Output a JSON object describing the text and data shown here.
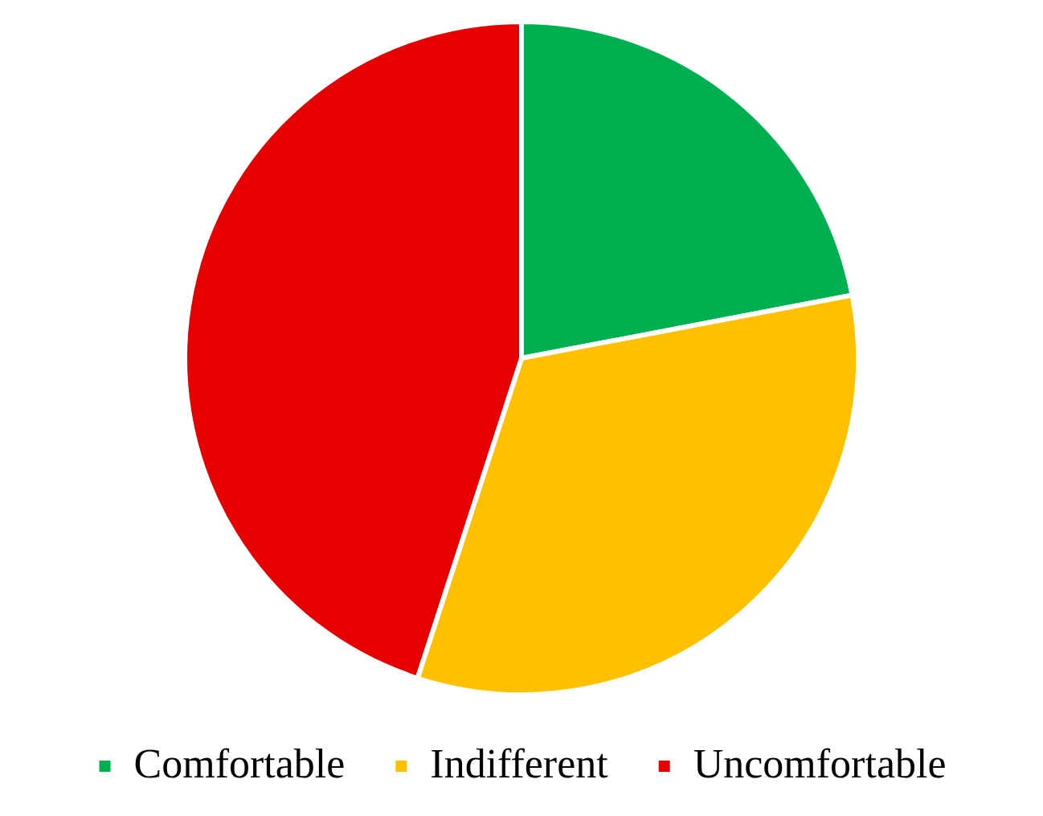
{
  "chart_data": {
    "type": "pie",
    "categories": [
      "Comfortable",
      "Indifferent",
      "Uncomfortable"
    ],
    "values": [
      22,
      33,
      45
    ],
    "colors": [
      "#00b050",
      "#ffc000",
      "#e60000"
    ],
    "legend": "bottom"
  }
}
